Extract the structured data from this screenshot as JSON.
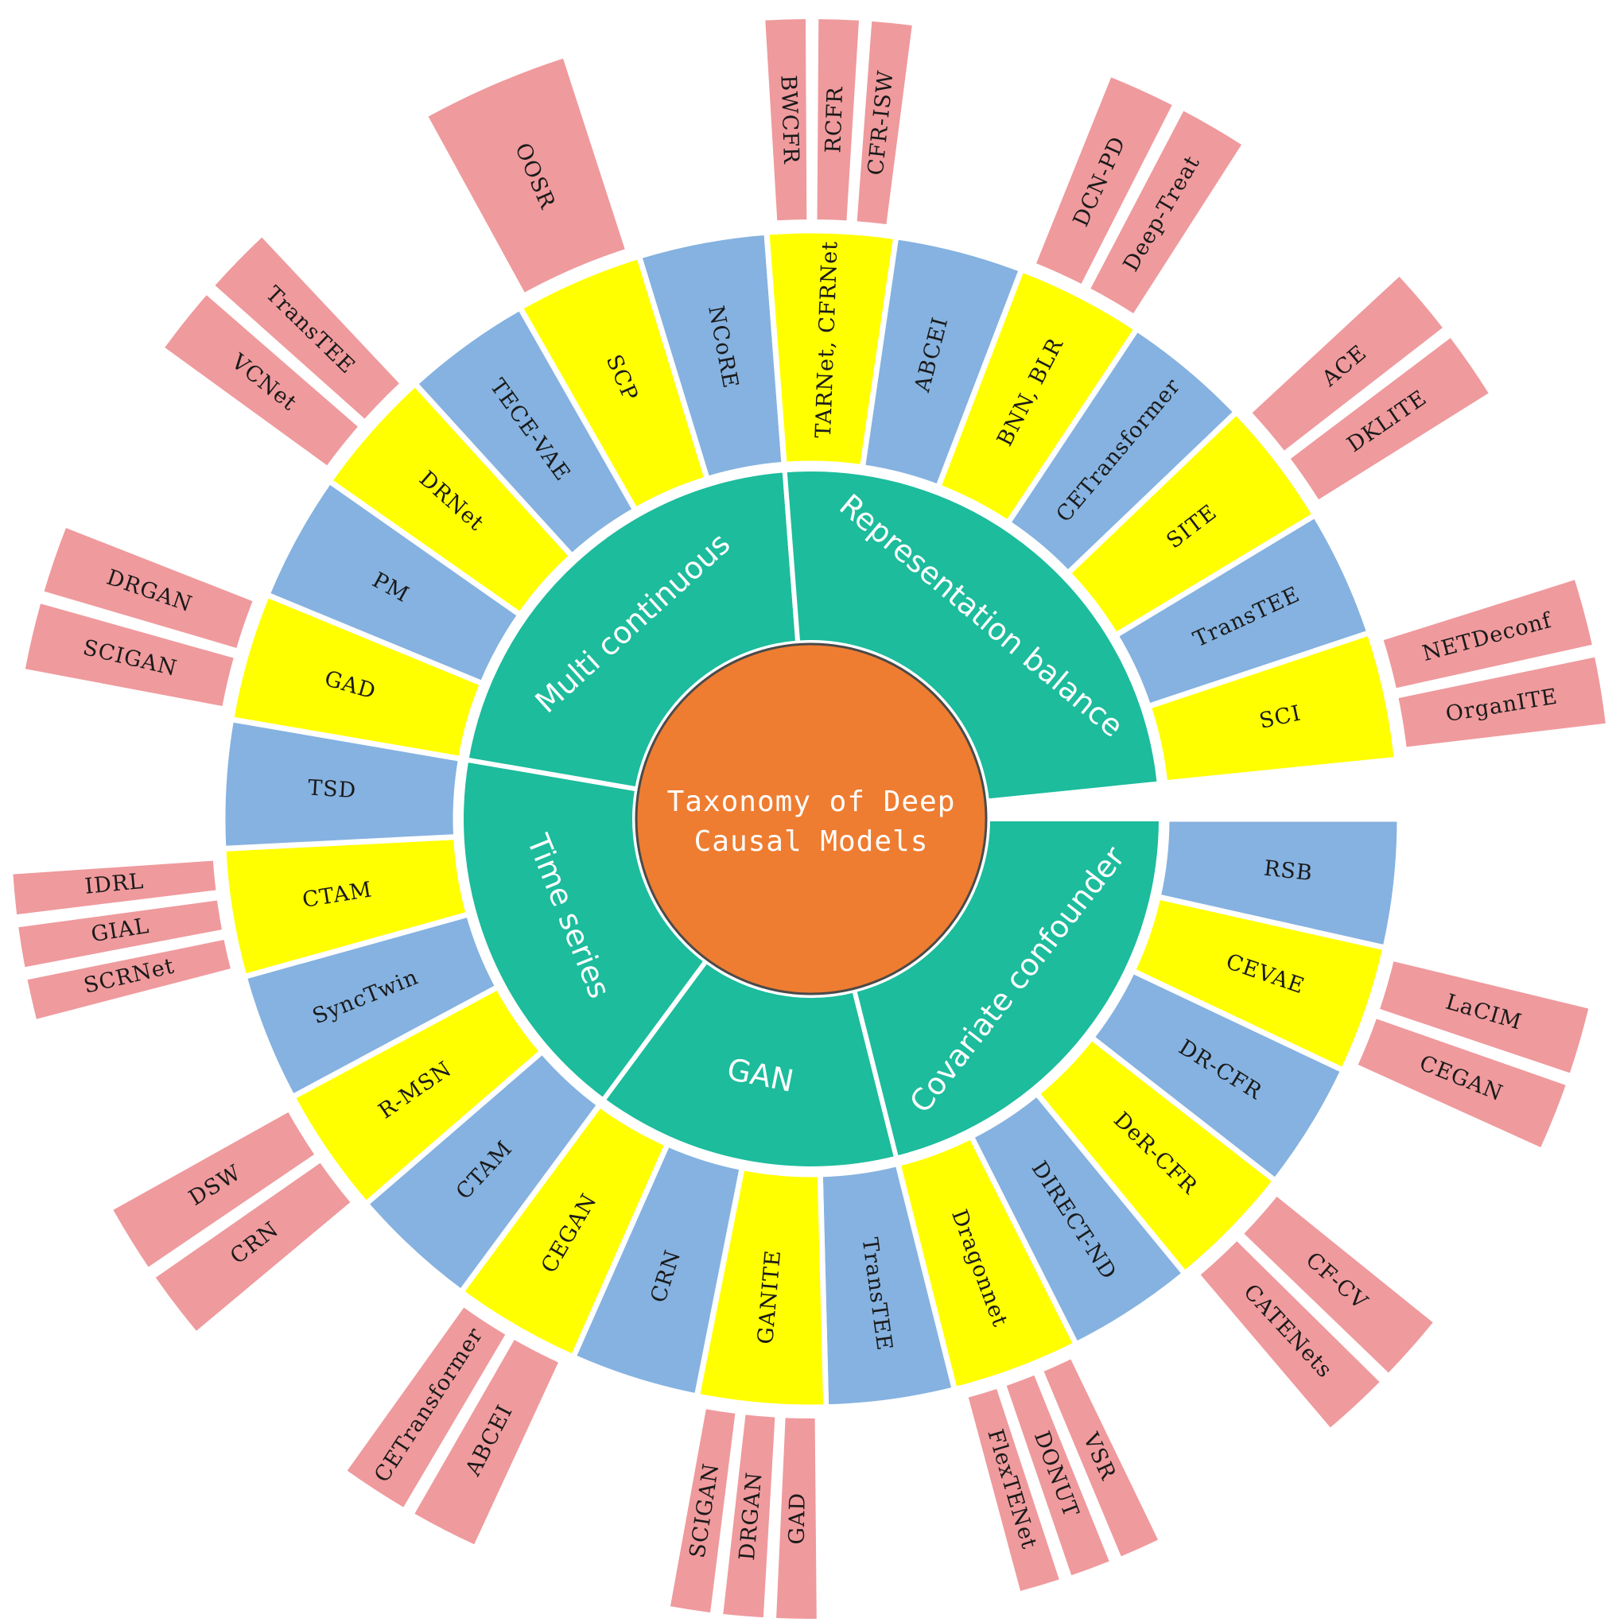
{
  "title": [
    "Taxonomy of Deep",
    "Causal Models"
  ],
  "colors": {
    "center": "#ee7d31",
    "category": "#1cbc9c",
    "model_yellow": "#ffff00",
    "model_blue": "#85b2e0",
    "related": "#ef9a9d"
  },
  "categories": [
    {
      "name": "Covariate confounder",
      "models": [
        {
          "name": "RSB",
          "color": "blue",
          "related": []
        },
        {
          "name": "CEVAE",
          "color": "yellow",
          "related": [
            "LaCIM",
            "CEGAN"
          ]
        },
        {
          "name": "DR-CFR",
          "color": "blue",
          "related": []
        },
        {
          "name": "DeR-CFR",
          "color": "yellow",
          "related": [
            "CF-CV",
            "CATENets"
          ]
        },
        {
          "name": "DIRECT-ND",
          "color": "blue",
          "related": []
        },
        {
          "name": "Dragonnet",
          "color": "yellow",
          "related": [
            "VSR",
            "DONUT",
            "FlexTENet"
          ]
        }
      ]
    },
    {
      "name": "GAN",
      "models": [
        {
          "name": "TransTEE",
          "color": "blue",
          "related": []
        },
        {
          "name": "GANITE",
          "color": "yellow",
          "related": [
            "GAD",
            "DRGAN",
            "SCIGAN"
          ]
        },
        {
          "name": "CRN",
          "color": "blue",
          "related": []
        },
        {
          "name": "CEGAN",
          "color": "yellow",
          "related": [
            "ABCEI",
            "CETransformer"
          ]
        }
      ]
    },
    {
      "name": "Time series",
      "models": [
        {
          "name": "CTAM",
          "color": "blue",
          "related": []
        },
        {
          "name": "R-MSN",
          "color": "yellow",
          "related": [
            "CRN",
            "DSW"
          ]
        },
        {
          "name": "SyncTwin",
          "color": "blue",
          "related": []
        },
        {
          "name": "CTAM",
          "color": "yellow",
          "related": [
            "SCRNet",
            "GIAL",
            "IDRL"
          ]
        },
        {
          "name": "TSD",
          "color": "blue",
          "related": []
        }
      ]
    },
    {
      "name": "Multi continuous",
      "models": [
        {
          "name": "GAD",
          "color": "yellow",
          "related": [
            "SCIGAN",
            "DRGAN"
          ]
        },
        {
          "name": "PM",
          "color": "blue",
          "related": []
        },
        {
          "name": "DRNet",
          "color": "yellow",
          "related": [
            "VCNet",
            "TransTEE"
          ]
        },
        {
          "name": "TECE-VAE",
          "color": "blue",
          "related": []
        },
        {
          "name": "SCP",
          "color": "yellow",
          "related": [
            "OOSR"
          ]
        },
        {
          "name": "NCoRE",
          "color": "blue",
          "related": []
        }
      ]
    },
    {
      "name": "Representation balance",
      "models": [
        {
          "name": "TARNet, CFRNet",
          "color": "yellow",
          "related": [
            "BWCFR",
            "RCFR",
            "CFR-ISW"
          ]
        },
        {
          "name": "ABCEI",
          "color": "blue",
          "related": []
        },
        {
          "name": "BNN, BLR",
          "color": "yellow",
          "related": [
            "DCN-PD",
            "Deep-Treat"
          ]
        },
        {
          "name": "CETransformer",
          "color": "blue",
          "related": []
        },
        {
          "name": "SITE",
          "color": "yellow",
          "related": [
            "ACE",
            "DKLITE"
          ]
        },
        {
          "name": "TransTEE",
          "color": "blue",
          "related": []
        },
        {
          "name": "SCI",
          "color": "yellow",
          "related": [
            "NETDeconf",
            "OrganITE"
          ]
        }
      ]
    }
  ]
}
